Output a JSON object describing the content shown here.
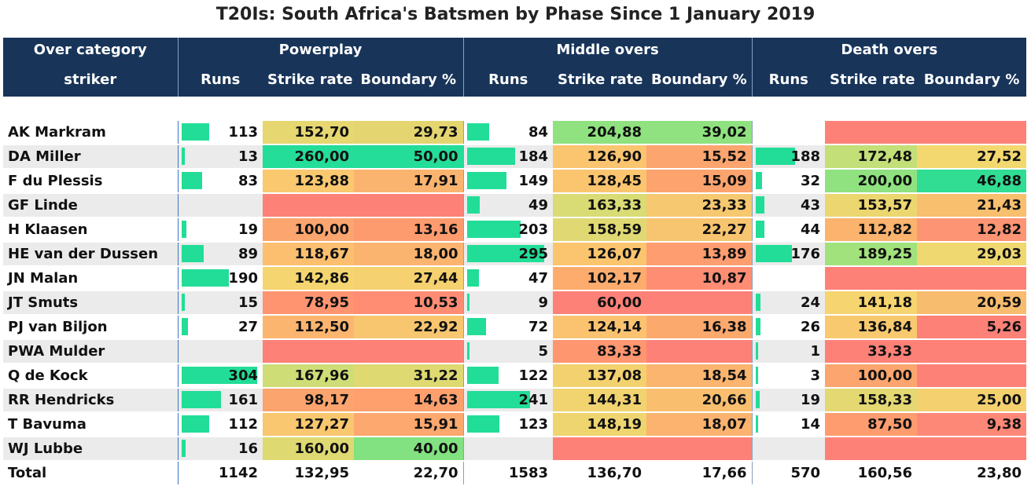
{
  "title": "T20Is: South Africa's Batsmen by Phase Since 1 January 2019",
  "header": {
    "row1_label": "Over category",
    "row2_label": "striker",
    "groups": [
      "Powerplay",
      "Middle overs",
      "Death overs"
    ],
    "cols": [
      "Runs",
      "Strike rate",
      "Boundary %"
    ]
  },
  "chart_data": {
    "type": "table",
    "columns": [
      "striker",
      "Powerplay Runs",
      "Powerplay Strike rate",
      "Powerplay Boundary %",
      "Middle overs Runs",
      "Middle overs Strike rate",
      "Middle overs Boundary %",
      "Death overs Runs",
      "Death overs Strike rate",
      "Death overs Boundary %"
    ],
    "rows": [
      {
        "name": "AK Markram",
        "pp": [
          "113",
          "152,70",
          "29,73"
        ],
        "mo": [
          "84",
          "204,88",
          "39,02"
        ],
        "do": [
          "",
          "",
          ""
        ],
        "ppc": [
          "#e6d770",
          "#e4d571"
        ],
        "moc": [
          "#8fe27f",
          "#8fe27f"
        ],
        "doc": [
          "#fe8178",
          "#fe8178"
        ],
        "ppr": 113,
        "mor": 84,
        "dor": null
      },
      {
        "name": "DA Miller",
        "pp": [
          "13",
          "260,00",
          "50,00"
        ],
        "mo": [
          "184",
          "126,90",
          "15,52"
        ],
        "do": [
          "188",
          "172,48",
          "27,52"
        ],
        "ppc": [
          "#23dd98",
          "#23dd98"
        ],
        "moc": [
          "#fbc46f",
          "#fda56e"
        ],
        "doc": [
          "#c3df78",
          "#f3d86f"
        ],
        "ppr": 13,
        "mor": 184,
        "dor": 188
      },
      {
        "name": "F du Plessis",
        "pp": [
          "83",
          "123,88",
          "17,91"
        ],
        "mo": [
          "149",
          "128,45",
          "15,09"
        ],
        "do": [
          "32",
          "200,00",
          "46,88"
        ],
        "ppc": [
          "#f9c86f",
          "#fbb46f"
        ],
        "moc": [
          "#fbc56f",
          "#fda36e"
        ],
        "doc": [
          "#8fe27f",
          "#30dd93"
        ],
        "ppr": 83,
        "mor": 149,
        "dor": 32
      },
      {
        "name": "GF Linde",
        "pp": [
          "",
          "",
          ""
        ],
        "mo": [
          "49",
          "163,33",
          "23,33"
        ],
        "do": [
          "43",
          "153,57",
          "21,43"
        ],
        "ppc": [
          "#fe8178",
          "#fe8178"
        ],
        "moc": [
          "#d9db74",
          "#f6c86f"
        ],
        "doc": [
          "#ecd670",
          "#f8bf6f"
        ],
        "ppr": null,
        "mor": 49,
        "dor": 43
      },
      {
        "name": "H Klaasen",
        "pp": [
          "19",
          "100,00",
          "13,16"
        ],
        "mo": [
          "203",
          "158,59",
          "22,27"
        ],
        "do": [
          "44",
          "112,82",
          "12,82"
        ],
        "ppc": [
          "#fca56e",
          "#fd9b6f"
        ],
        "moc": [
          "#e0d973",
          "#f7c56f"
        ],
        "doc": [
          "#fbb36e",
          "#fd9473"
        ],
        "ppr": 19,
        "mor": 203,
        "dor": 44
      },
      {
        "name": "HE van der Dussen",
        "pp": [
          "89",
          "118,67",
          "18,00"
        ],
        "mo": [
          "295",
          "126,07",
          "13,89"
        ],
        "do": [
          "176",
          "189,25",
          "29,03"
        ],
        "ppc": [
          "#fbbf6f",
          "#fbb46f"
        ],
        "moc": [
          "#fbc46f",
          "#fe9d6f"
        ],
        "doc": [
          "#a2e27c",
          "#efd870"
        ],
        "ppr": 89,
        "mor": 295,
        "dor": 176
      },
      {
        "name": "JN Malan",
        "pp": [
          "190",
          "142,86",
          "27,44"
        ],
        "mo": [
          "47",
          "102,17",
          "10,87"
        ],
        "do": [
          "",
          "",
          ""
        ],
        "ppc": [
          "#f5d56f",
          "#f5d16f"
        ],
        "moc": [
          "#fdac6e",
          "#fe8d74"
        ],
        "doc": [
          "#fe8178",
          "#fe8178"
        ],
        "ppr": 190,
        "mor": 47,
        "dor": null
      },
      {
        "name": "JT Smuts",
        "pp": [
          "15",
          "78,95",
          "10,53"
        ],
        "mo": [
          "9",
          "60,00",
          ""
        ],
        "do": [
          "24",
          "141,18",
          "20,59"
        ],
        "ppc": [
          "#fe9470",
          "#fe8d74"
        ],
        "moc": [
          "#fe8178",
          "#fe8178"
        ],
        "doc": [
          "#f6d46f",
          "#f8bc6f"
        ],
        "ppr": 15,
        "mor": 9,
        "dor": 24
      },
      {
        "name": "PJ van Biljon",
        "pp": [
          "27",
          "112,50",
          "22,92"
        ],
        "mo": [
          "72",
          "124,14",
          "16,38"
        ],
        "do": [
          "26",
          "136,84",
          "5,26"
        ],
        "ppc": [
          "#fcb56f",
          "#f8c66f"
        ],
        "moc": [
          "#fbc36f",
          "#fca96e"
        ],
        "doc": [
          "#f8c96f",
          "#fe8178"
        ],
        "ppr": 27,
        "mor": 72,
        "dor": 26
      },
      {
        "name": "PWA Mulder",
        "pp": [
          "",
          "",
          ""
        ],
        "mo": [
          "5",
          "83,33",
          ""
        ],
        "do": [
          "1",
          "33,33",
          ""
        ],
        "ppc": [
          "#fe8178",
          "#fe8178"
        ],
        "moc": [
          "#fe9670",
          "#fe8178"
        ],
        "doc": [
          "#fe8178",
          "#fe8178"
        ],
        "ppr": null,
        "mor": 5,
        "dor": 1
      },
      {
        "name": "Q de Kock",
        "pp": [
          "304",
          "167,96",
          "31,22"
        ],
        "mo": [
          "122",
          "137,08",
          "18,54"
        ],
        "do": [
          "3",
          "100,00",
          ""
        ],
        "ppc": [
          "#cfdd76",
          "#dfd972"
        ],
        "moc": [
          "#f3d16f",
          "#fbb56f"
        ],
        "doc": [
          "#fca56e",
          "#fe8178"
        ],
        "ppr": 304,
        "mor": 122,
        "dor": 3
      },
      {
        "name": "RR Hendricks",
        "pp": [
          "161",
          "98,17",
          "14,63"
        ],
        "mo": [
          "241",
          "144,31",
          "20,66"
        ],
        "do": [
          "19",
          "158,33",
          "25,00"
        ],
        "ppc": [
          "#fca46e",
          "#fda06e"
        ],
        "moc": [
          "#f1d470",
          "#f9bf6f"
        ],
        "doc": [
          "#e3d872",
          "#f5d06f"
        ],
        "ppr": 161,
        "mor": 241,
        "dor": 19
      },
      {
        "name": "T Bavuma",
        "pp": [
          "112",
          "127,27",
          "15,91"
        ],
        "mo": [
          "123",
          "148,19",
          "18,07"
        ],
        "do": [
          "14",
          "87,50",
          "9,38"
        ],
        "ppc": [
          "#f9c76f",
          "#fca86e"
        ],
        "moc": [
          "#eed570",
          "#fbb36f"
        ],
        "doc": [
          "#fe9c6f",
          "#fe8877"
        ],
        "ppr": 112,
        "mor": 123,
        "dor": 14
      },
      {
        "name": "WJ Lubbe",
        "pp": [
          "16",
          "160,00",
          "40,00"
        ],
        "mo": [
          "",
          "",
          ""
        ],
        "do": [
          "",
          "",
          ""
        ],
        "ppc": [
          "#dfd972",
          "#82e180"
        ],
        "moc": [
          "#fe8178",
          "#fe8178"
        ],
        "doc": [
          "#fe8178",
          "#fe8178"
        ],
        "ppr": 16,
        "mor": null,
        "dor": null
      }
    ],
    "total": {
      "label": "Total",
      "pp": [
        "1142",
        "132,95",
        "22,70"
      ],
      "mo": [
        "1583",
        "136,70",
        "17,66"
      ],
      "do": [
        "570",
        "160,56",
        "23,80"
      ]
    },
    "runs_max": 304,
    "bar_color": "#22dd97",
    "header_color": "#183459",
    "stripe_color": "#ebebeb"
  }
}
